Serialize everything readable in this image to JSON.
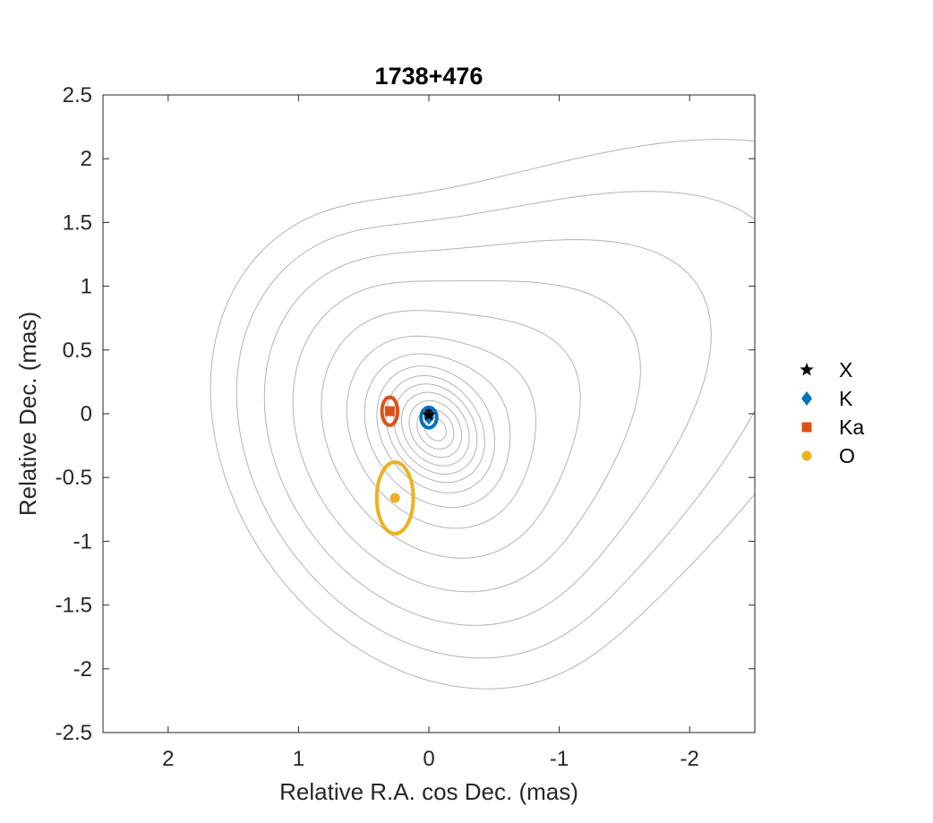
{
  "chart_data": {
    "type": "scatter",
    "title": "1738+476",
    "xlabel": "Relative R.A. cos Dec. (mas)",
    "ylabel": "Relative Dec. (mas)",
    "xlim": [
      2.5,
      -2.5
    ],
    "ylim": [
      -2.5,
      2.5
    ],
    "x_reversed": true,
    "xticks": [
      2,
      1,
      0,
      -1,
      -2
    ],
    "xtick_labels": [
      "2",
      "1",
      "0",
      "-1",
      "-2"
    ],
    "yticks": [
      2.5,
      2,
      1.5,
      1,
      0.5,
      0,
      -0.5,
      -1,
      -1.5,
      -2,
      -2.5
    ],
    "ytick_labels": [
      "2.5",
      "2",
      "1.5",
      "1",
      "0.5",
      "0",
      "-0.5",
      "-1",
      "-1.5",
      "-2",
      "-2.5"
    ],
    "grid": false,
    "legend_position": "right",
    "background_contours": {
      "color": "#b3b3b3",
      "center": [
        -0.05,
        -0.12
      ],
      "levels": 14
    },
    "series": [
      {
        "name": "X",
        "marker": "star",
        "color": "#000000",
        "x": 0.0,
        "y": -0.01,
        "error_ellipse": {
          "semi_x": 0.03,
          "semi_y": 0.04
        }
      },
      {
        "name": "K",
        "marker": "diamond",
        "color": "#0072BD",
        "x": 0.0,
        "y": -0.03,
        "error_ellipse": {
          "semi_x": 0.06,
          "semi_y": 0.08
        }
      },
      {
        "name": "Ka",
        "marker": "square",
        "color": "#D95319",
        "x": 0.3,
        "y": 0.02,
        "error_ellipse": {
          "semi_x": 0.06,
          "semi_y": 0.11
        }
      },
      {
        "name": "O",
        "marker": "circle",
        "color": "#EDB120",
        "x": 0.26,
        "y": -0.66,
        "error_ellipse": {
          "semi_x": 0.14,
          "semi_y": 0.28
        }
      }
    ]
  }
}
